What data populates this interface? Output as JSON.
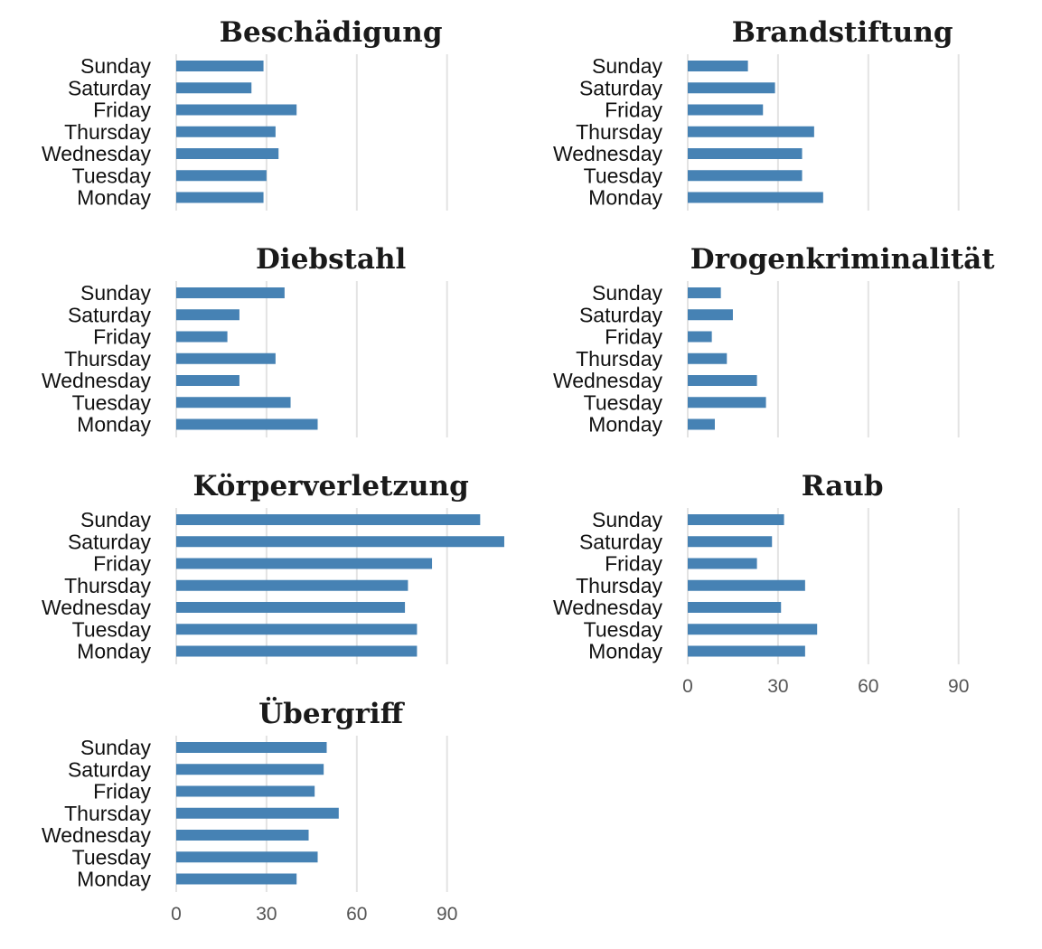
{
  "chart_data": {
    "type": "bar",
    "orientation": "horizontal",
    "xlim": [
      0,
      110
    ],
    "x_ticks": [
      0,
      30,
      60,
      90
    ],
    "x_tick_labels": [
      "0",
      "30",
      "60",
      "90"
    ],
    "grid": "vertical",
    "bar_color": "#4682B4",
    "categories": [
      "Sunday",
      "Saturday",
      "Friday",
      "Thursday",
      "Wednesday",
      "Tuesday",
      "Monday"
    ],
    "panels": [
      {
        "title": "Beschädigung",
        "values": [
          29,
          25,
          40,
          33,
          34,
          30,
          29
        ]
      },
      {
        "title": "Brandstiftung",
        "values": [
          20,
          29,
          25,
          42,
          38,
          38,
          45
        ]
      },
      {
        "title": "Diebstahl",
        "values": [
          36,
          21,
          17,
          33,
          21,
          38,
          47
        ]
      },
      {
        "title": "Drogenkriminalität",
        "values": [
          11,
          15,
          8,
          13,
          23,
          26,
          9
        ]
      },
      {
        "title": "Körperverletzung",
        "values": [
          101,
          109,
          85,
          77,
          76,
          80,
          80
        ]
      },
      {
        "title": "Raub",
        "values": [
          32,
          28,
          23,
          39,
          31,
          43,
          39
        ]
      },
      {
        "title": "Übergriff",
        "values": [
          50,
          49,
          46,
          54,
          44,
          47,
          40
        ]
      }
    ]
  }
}
